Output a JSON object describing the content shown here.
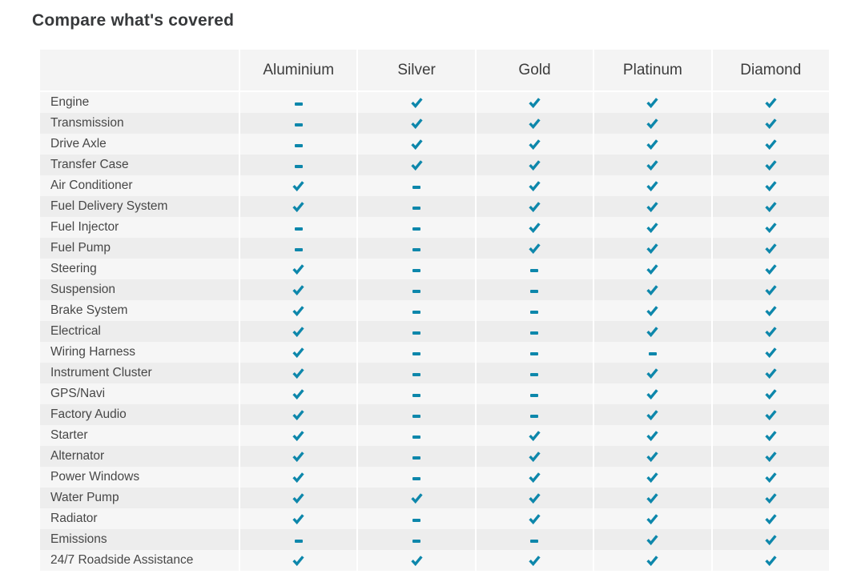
{
  "title": "Compare what's covered",
  "colors": {
    "accent": "#0d87ab"
  },
  "icons": {
    "covered": "check-icon",
    "not_covered": "dash-icon"
  },
  "table": {
    "columns": [
      "",
      "Aluminium",
      "Silver",
      "Gold",
      "Platinum",
      "Diamond"
    ],
    "rows": [
      {
        "label": "Engine",
        "coverage": [
          "dash",
          "check",
          "check",
          "check",
          "check"
        ]
      },
      {
        "label": "Transmission",
        "coverage": [
          "dash",
          "check",
          "check",
          "check",
          "check"
        ]
      },
      {
        "label": "Drive Axle",
        "coverage": [
          "dash",
          "check",
          "check",
          "check",
          "check"
        ]
      },
      {
        "label": "Transfer Case",
        "coverage": [
          "dash",
          "check",
          "check",
          "check",
          "check"
        ]
      },
      {
        "label": "Air Conditioner",
        "coverage": [
          "check",
          "dash",
          "check",
          "check",
          "check"
        ]
      },
      {
        "label": "Fuel Delivery System",
        "coverage": [
          "check",
          "dash",
          "check",
          "check",
          "check"
        ]
      },
      {
        "label": "Fuel Injector",
        "coverage": [
          "dash",
          "dash",
          "check",
          "check",
          "check"
        ]
      },
      {
        "label": "Fuel Pump",
        "coverage": [
          "dash",
          "dash",
          "check",
          "check",
          "check"
        ]
      },
      {
        "label": "Steering",
        "coverage": [
          "check",
          "dash",
          "dash",
          "check",
          "check"
        ]
      },
      {
        "label": "Suspension",
        "coverage": [
          "check",
          "dash",
          "dash",
          "check",
          "check"
        ]
      },
      {
        "label": "Brake System",
        "coverage": [
          "check",
          "dash",
          "dash",
          "check",
          "check"
        ]
      },
      {
        "label": "Electrical",
        "coverage": [
          "check",
          "dash",
          "dash",
          "check",
          "check"
        ]
      },
      {
        "label": "Wiring Harness",
        "coverage": [
          "check",
          "dash",
          "dash",
          "dash",
          "check"
        ]
      },
      {
        "label": "Instrument Cluster",
        "coverage": [
          "check",
          "dash",
          "dash",
          "check",
          "check"
        ]
      },
      {
        "label": "GPS/Navi",
        "coverage": [
          "check",
          "dash",
          "dash",
          "check",
          "check"
        ]
      },
      {
        "label": "Factory Audio",
        "coverage": [
          "check",
          "dash",
          "dash",
          "check",
          "check"
        ]
      },
      {
        "label": "Starter",
        "coverage": [
          "check",
          "dash",
          "check",
          "check",
          "check"
        ]
      },
      {
        "label": "Alternator",
        "coverage": [
          "check",
          "dash",
          "check",
          "check",
          "check"
        ]
      },
      {
        "label": "Power Windows",
        "coverage": [
          "check",
          "dash",
          "check",
          "check",
          "check"
        ]
      },
      {
        "label": "Water Pump",
        "coverage": [
          "check",
          "check",
          "check",
          "check",
          "check"
        ]
      },
      {
        "label": "Radiator",
        "coverage": [
          "check",
          "dash",
          "check",
          "check",
          "check"
        ]
      },
      {
        "label": "Emissions",
        "coverage": [
          "dash",
          "dash",
          "dash",
          "check",
          "check"
        ]
      },
      {
        "label": "24/7 Roadside Assistance",
        "coverage": [
          "check",
          "check",
          "check",
          "check",
          "check"
        ]
      }
    ]
  }
}
